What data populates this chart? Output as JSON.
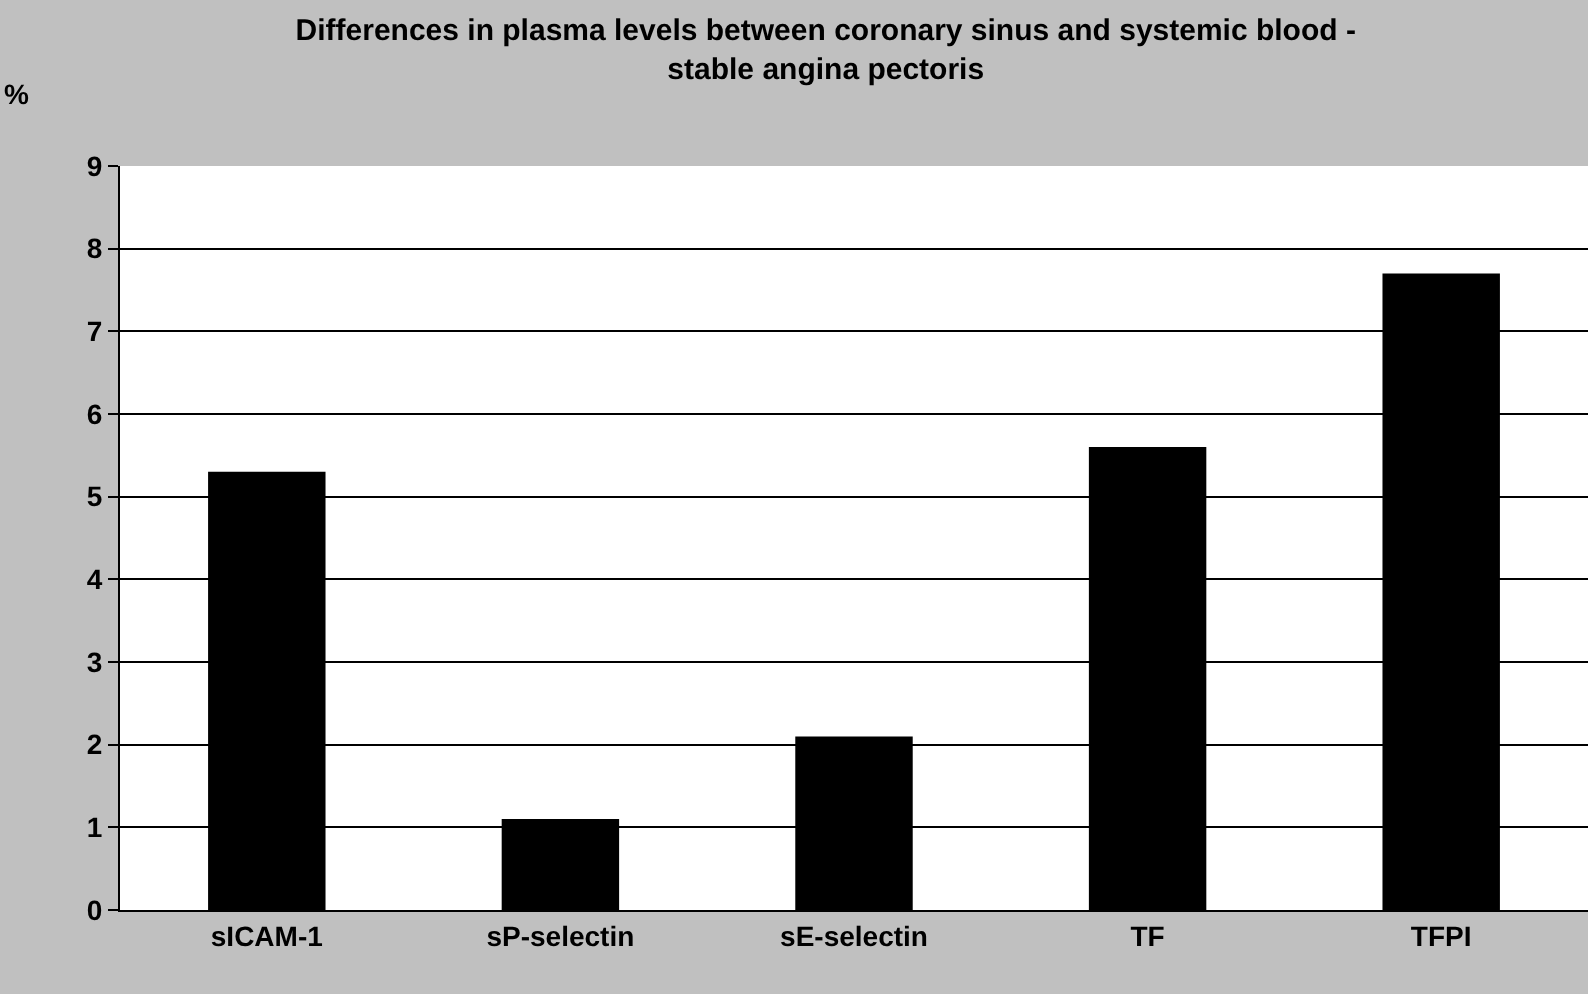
{
  "chart_data": {
    "type": "bar",
    "title": "Differences in plasma levels between coronary sinus and systemic blood -\nstable angina pectoris",
    "ylabel": "%",
    "categories": [
      "sICAM-1",
      "sP-selectin",
      "sE-selectin",
      "TF",
      "TFPI"
    ],
    "values": [
      5.3,
      1.1,
      2.1,
      5.6,
      7.7
    ],
    "color": "#000000",
    "ylim": [
      0,
      9
    ],
    "yticks": [
      0,
      1,
      2,
      3,
      4,
      5,
      6,
      7,
      8,
      9
    ],
    "grid": "y"
  }
}
